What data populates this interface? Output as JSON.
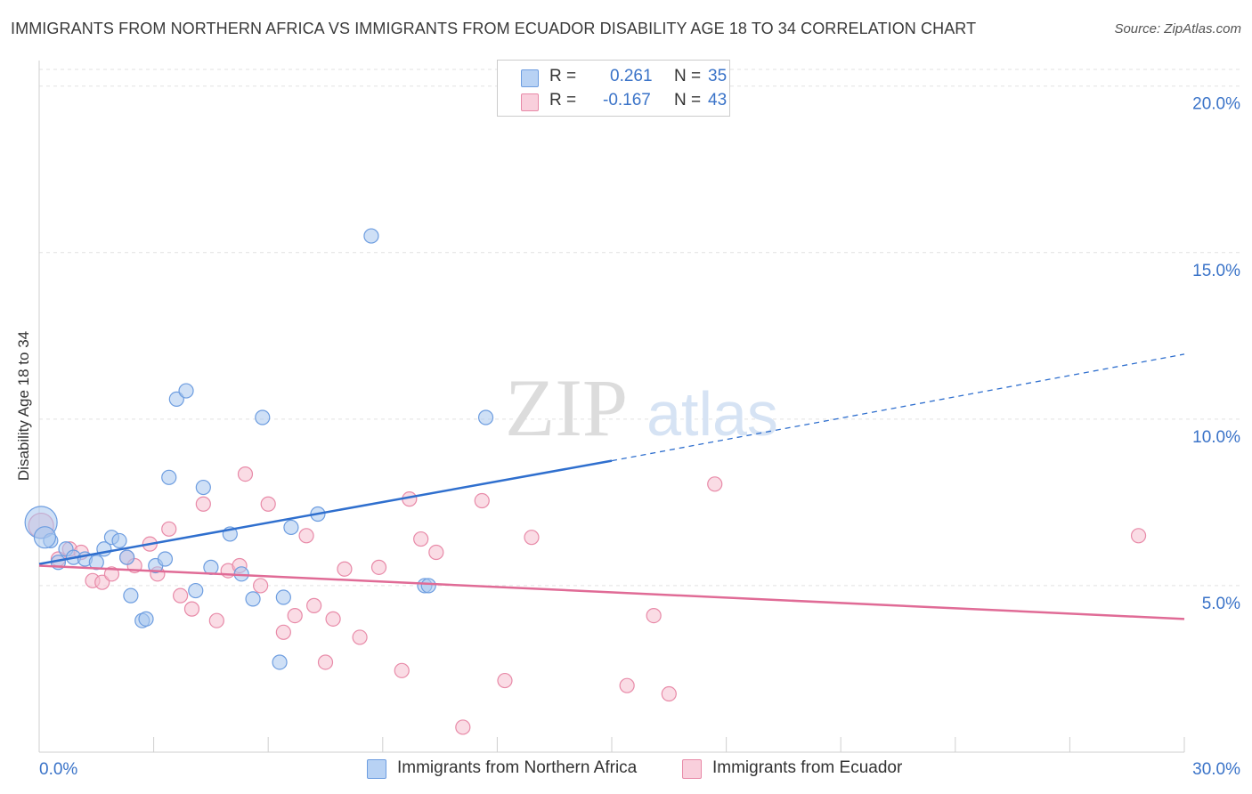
{
  "title": "IMMIGRANTS FROM NORTHERN AFRICA VS IMMIGRANTS FROM ECUADOR DISABILITY AGE 18 TO 34 CORRELATION CHART",
  "source": "Source: ZipAtlas.com",
  "watermark": {
    "zip": "ZIP",
    "atlas": "atlas"
  },
  "legend": {
    "r_label": "R =",
    "n_label": "N =",
    "rows": [
      {
        "r": "0.261",
        "n": "35"
      },
      {
        "r": "-0.167",
        "n": "43"
      }
    ]
  },
  "colors": {
    "blue_fill": "#a8c6ef",
    "blue_stroke": "#6d9de0",
    "blue_line": "#2f6fce",
    "pink_fill": "#f6bfd0",
    "pink_stroke": "#e88aa8",
    "pink_line": "#e06b96",
    "tick_label": "#3a73c8"
  },
  "chart_data": {
    "type": "scatter",
    "title": "IMMIGRANTS FROM NORTHERN AFRICA VS IMMIGRANTS FROM ECUADOR DISABILITY AGE 18 TO 34 CORRELATION CHART",
    "xlabel": "",
    "ylabel": "Disability Age 18 to 34",
    "xlim": [
      0,
      30
    ],
    "ylim": [
      0,
      20.5
    ],
    "x_tick_labels": [
      "0.0%",
      "30.0%"
    ],
    "y_ticks": [
      5,
      10,
      15,
      20
    ],
    "y_tick_labels": [
      "5.0%",
      "10.0%",
      "15.0%",
      "20.0%"
    ],
    "grid": true,
    "legend_position": "top-center",
    "series": [
      {
        "name": "Immigrants from Northern Africa",
        "r": 0.261,
        "n": 35,
        "trend": {
          "x0": 0,
          "y0": 5.65,
          "x1": 15,
          "y1": 8.75,
          "dashed_to_x": 30,
          "dashed_to_y": 11.95
        },
        "points": [
          [
            0.05,
            6.9
          ],
          [
            0.3,
            6.35
          ],
          [
            0.5,
            5.7
          ],
          [
            0.7,
            6.1
          ],
          [
            0.9,
            5.85
          ],
          [
            1.2,
            5.8
          ],
          [
            1.5,
            5.7
          ],
          [
            1.7,
            6.1
          ],
          [
            1.9,
            6.45
          ],
          [
            2.1,
            6.35
          ],
          [
            2.3,
            5.85
          ],
          [
            2.4,
            4.7
          ],
          [
            2.7,
            3.95
          ],
          [
            2.8,
            4.0
          ],
          [
            3.05,
            5.6
          ],
          [
            3.3,
            5.8
          ],
          [
            3.4,
            8.25
          ],
          [
            3.6,
            10.6
          ],
          [
            3.85,
            10.85
          ],
          [
            4.1,
            4.85
          ],
          [
            4.3,
            7.95
          ],
          [
            4.5,
            5.55
          ],
          [
            5.0,
            6.55
          ],
          [
            5.3,
            5.35
          ],
          [
            5.6,
            4.6
          ],
          [
            5.85,
            10.05
          ],
          [
            6.3,
            2.7
          ],
          [
            6.4,
            4.65
          ],
          [
            6.6,
            6.75
          ],
          [
            7.3,
            7.15
          ],
          [
            8.7,
            15.5
          ],
          [
            10.1,
            5.0
          ],
          [
            10.2,
            5.0
          ],
          [
            11.7,
            10.05
          ],
          [
            0.15,
            6.45
          ]
        ]
      },
      {
        "name": "Immigrants from Ecuador",
        "r": -0.167,
        "n": 43,
        "trend": {
          "x0": 0,
          "y0": 5.6,
          "x1": 30,
          "y1": 4.0
        },
        "points": [
          [
            0.05,
            6.8
          ],
          [
            0.5,
            5.8
          ],
          [
            0.8,
            6.1
          ],
          [
            1.1,
            6.0
          ],
          [
            1.4,
            5.15
          ],
          [
            1.65,
            5.1
          ],
          [
            1.9,
            5.35
          ],
          [
            2.3,
            5.85
          ],
          [
            2.5,
            5.6
          ],
          [
            2.9,
            6.25
          ],
          [
            3.1,
            5.35
          ],
          [
            3.4,
            6.7
          ],
          [
            3.7,
            4.7
          ],
          [
            4.0,
            4.3
          ],
          [
            4.3,
            7.45
          ],
          [
            4.65,
            3.95
          ],
          [
            4.95,
            5.45
          ],
          [
            5.25,
            5.6
          ],
          [
            5.4,
            8.35
          ],
          [
            5.8,
            5.0
          ],
          [
            6.0,
            7.45
          ],
          [
            6.4,
            3.6
          ],
          [
            6.7,
            4.1
          ],
          [
            7.0,
            6.5
          ],
          [
            7.2,
            4.4
          ],
          [
            7.5,
            2.7
          ],
          [
            7.7,
            4.0
          ],
          [
            8.0,
            5.5
          ],
          [
            8.4,
            3.45
          ],
          [
            8.9,
            5.55
          ],
          [
            9.5,
            2.45
          ],
          [
            9.7,
            7.6
          ],
          [
            10.0,
            6.4
          ],
          [
            10.4,
            6.0
          ],
          [
            11.1,
            0.75
          ],
          [
            11.6,
            7.55
          ],
          [
            12.2,
            2.15
          ],
          [
            12.9,
            6.45
          ],
          [
            15.4,
            2.0
          ],
          [
            16.1,
            4.1
          ],
          [
            16.5,
            1.75
          ],
          [
            17.7,
            8.05
          ],
          [
            28.8,
            6.5
          ]
        ]
      }
    ]
  },
  "bottom_legend": [
    {
      "label": "Immigrants from Northern Africa"
    },
    {
      "label": "Immigrants from Ecuador"
    }
  ]
}
